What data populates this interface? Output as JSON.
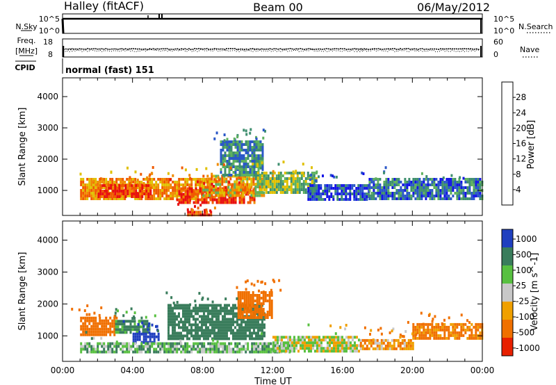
{
  "header": {
    "station": "Halley (fitACF)",
    "beam": "Beam 00",
    "date": "06/May/2012"
  },
  "nsky_panel": {
    "left_label": "N.Sky",
    "right_label": "N.Search",
    "left_ticks": [
      "10^5",
      "10^0"
    ],
    "right_ticks": [
      "10^5",
      "10^0"
    ]
  },
  "freq_panel": {
    "left_label_1": "Freq.",
    "left_label_2": "[MHz]",
    "left_ticks": [
      "18",
      "8"
    ],
    "right_label": "Nave",
    "right_ticks": [
      "60",
      "0"
    ]
  },
  "cpid_panel": {
    "label": "CPID",
    "text": "normal (fast) 151"
  },
  "time_axis": {
    "label": "Time UT",
    "ticks": [
      "00:00",
      "04:00",
      "08:00",
      "12:00",
      "16:00",
      "20:00",
      "00:00"
    ]
  },
  "range_axis": {
    "label": "Slant Range [km]",
    "ticks": [
      "1000",
      "2000",
      "3000",
      "4000"
    ]
  },
  "power_colorbar": {
    "label": "Power [dB]",
    "ticks": [
      "4",
      "8",
      "12",
      "16",
      "20",
      "24",
      "28"
    ],
    "colors": [
      "#1414e6",
      "#2b58c8",
      "#3f8f6f",
      "#5fb15f",
      "#e0c000",
      "#f08a00",
      "#f05a00",
      "#e81010"
    ]
  },
  "velocity_colorbar": {
    "label": "Velocity [m s^-1]",
    "ticks": [
      "1000",
      "500",
      "100",
      "25",
      "-25",
      "-100",
      "-500",
      "-1000"
    ],
    "colors": [
      "#1f3fbf",
      "#3a7d5c",
      "#58c040",
      "#c8c8c8",
      "#f0a000",
      "#f07000",
      "#e82000"
    ]
  },
  "chart_data": [
    {
      "type": "heatmap",
      "panel": "power",
      "x_unit": "hours UT",
      "xlim": [
        0,
        24
      ],
      "ylim": [
        200,
        4600
      ],
      "zlim": [
        0,
        32
      ],
      "regions": [
        {
          "x": [
            1.0,
            8.5
          ],
          "y": [
            700,
            1400
          ],
          "value": 22
        },
        {
          "x": [
            2.0,
            5.0
          ],
          "y": [
            800,
            1200
          ],
          "value": 28
        },
        {
          "x": [
            6.5,
            11.0
          ],
          "y": [
            600,
            1100
          ],
          "value": 29
        },
        {
          "x": [
            8.0,
            11.5
          ],
          "y": [
            800,
            1500
          ],
          "value": 20
        },
        {
          "x": [
            9.0,
            11.5
          ],
          "y": [
            1500,
            2600
          ],
          "value": 10
        },
        {
          "x": [
            11.0,
            14.5
          ],
          "y": [
            900,
            1600
          ],
          "value": 14
        },
        {
          "x": [
            14.0,
            17.5
          ],
          "y": [
            700,
            1200
          ],
          "value": 6
        },
        {
          "x": [
            17.5,
            24.0
          ],
          "y": [
            700,
            1400
          ],
          "value": 8
        },
        {
          "x": [
            7.0,
            8.5
          ],
          "y": [
            250,
            350
          ],
          "value": 29
        }
      ]
    },
    {
      "type": "heatmap",
      "panel": "velocity",
      "x_unit": "hours UT",
      "xlim": [
        0,
        24
      ],
      "ylim": [
        200,
        4600
      ],
      "zlim": [
        -1200,
        1200
      ],
      "regions": [
        {
          "x": [
            1.0,
            3.0
          ],
          "y": [
            1000,
            1600
          ],
          "value": -200
        },
        {
          "x": [
            3.0,
            5.0
          ],
          "y": [
            1100,
            1500
          ],
          "value": 150
        },
        {
          "x": [
            4.0,
            5.5
          ],
          "y": [
            800,
            1100
          ],
          "value": 700
        },
        {
          "x": [
            6.0,
            11.5
          ],
          "y": [
            900,
            2000
          ],
          "value": 300
        },
        {
          "x": [
            10.0,
            12.0
          ],
          "y": [
            1600,
            2400
          ],
          "value": -300
        },
        {
          "x": [
            1.0,
            13.0
          ],
          "y": [
            500,
            800
          ],
          "value": 80
        },
        {
          "x": [
            12.0,
            17.0
          ],
          "y": [
            500,
            1000
          ],
          "value": 0
        },
        {
          "x": [
            17.0,
            20.0
          ],
          "y": [
            600,
            900
          ],
          "value": -80
        },
        {
          "x": [
            20.0,
            24.0
          ],
          "y": [
            900,
            1400
          ],
          "value": -150
        }
      ]
    }
  ]
}
